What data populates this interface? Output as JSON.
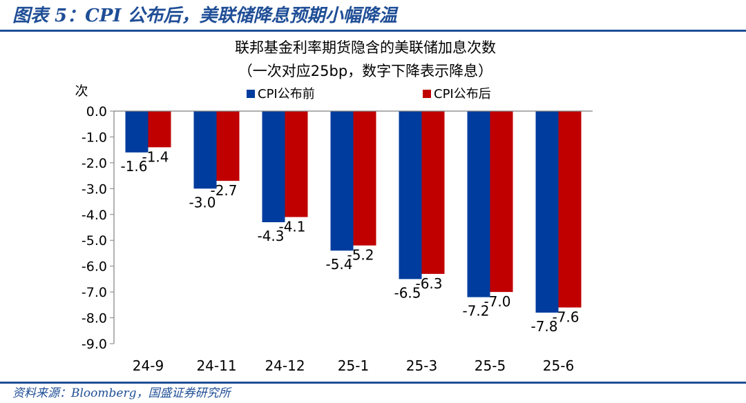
{
  "figure_title": "图表 5：CPI 公布后，美联储降息预期小幅降温",
  "source": "资料来源：Bloomberg，国盛证券研究所",
  "colors": {
    "series1": "#003c9e",
    "series2": "#c00000",
    "rule": "#1f4e96"
  },
  "chart_data": {
    "type": "bar",
    "title": "联邦基金利率期货隐含的美联储加息次数",
    "subtitle": "（一次对应25bp，数字下降表示降息）",
    "ylabel": "次",
    "legend_position": "top",
    "ylim": [
      -9.0,
      0.0
    ],
    "yticks": [
      "0.0",
      "-1.0",
      "-2.0",
      "-3.0",
      "-4.0",
      "-5.0",
      "-6.0",
      "-7.0",
      "-8.0",
      "-9.0"
    ],
    "categories": [
      "24-9",
      "24-11",
      "24-12",
      "25-1",
      "25-3",
      "25-5",
      "25-6"
    ],
    "series": [
      {
        "name": "CPI公布前",
        "values": [
          -1.6,
          -3.0,
          -4.3,
          -5.4,
          -6.5,
          -7.2,
          -7.8
        ],
        "labels": [
          "-1.6",
          "-3.0",
          "-4.3",
          "-5.4",
          "-6.5",
          "-7.2",
          "-7.8"
        ]
      },
      {
        "name": "CPI公布后",
        "values": [
          -1.4,
          -2.7,
          -4.1,
          -5.2,
          -6.3,
          -7.0,
          -7.6
        ],
        "labels": [
          "-1.4",
          "-2.7",
          "-4.1",
          "-5.2",
          "-6.3",
          "-7.0",
          "-7.6"
        ]
      }
    ]
  }
}
